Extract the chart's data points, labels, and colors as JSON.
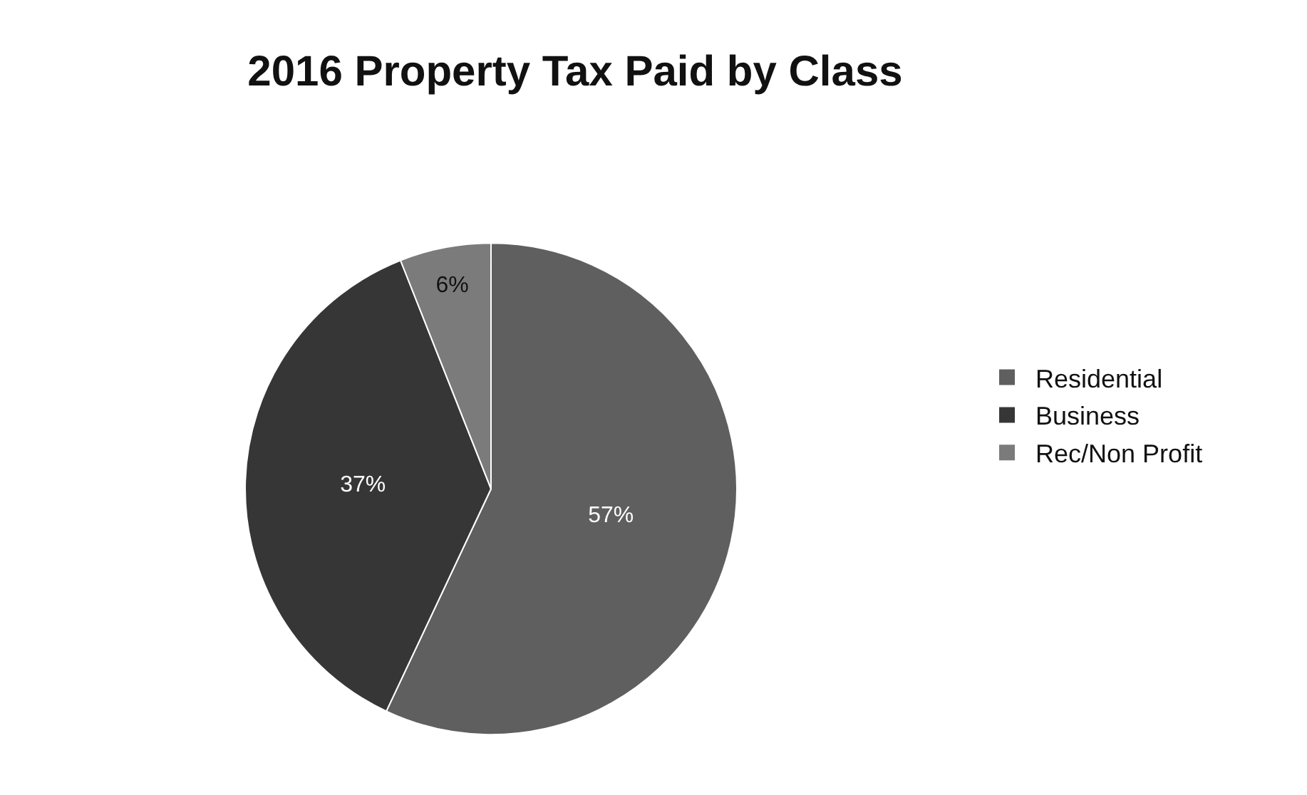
{
  "chart_data": {
    "type": "pie",
    "title": "2016 Property Tax Paid by Class",
    "categories": [
      "Residential",
      "Business",
      "Rec/Non Profit"
    ],
    "values": [
      57,
      37,
      6
    ],
    "value_labels": [
      "57%",
      "37%",
      "6%"
    ],
    "colors": [
      "#5f5f5f",
      "#363636",
      "#7b7b7b"
    ],
    "legend": "right"
  }
}
